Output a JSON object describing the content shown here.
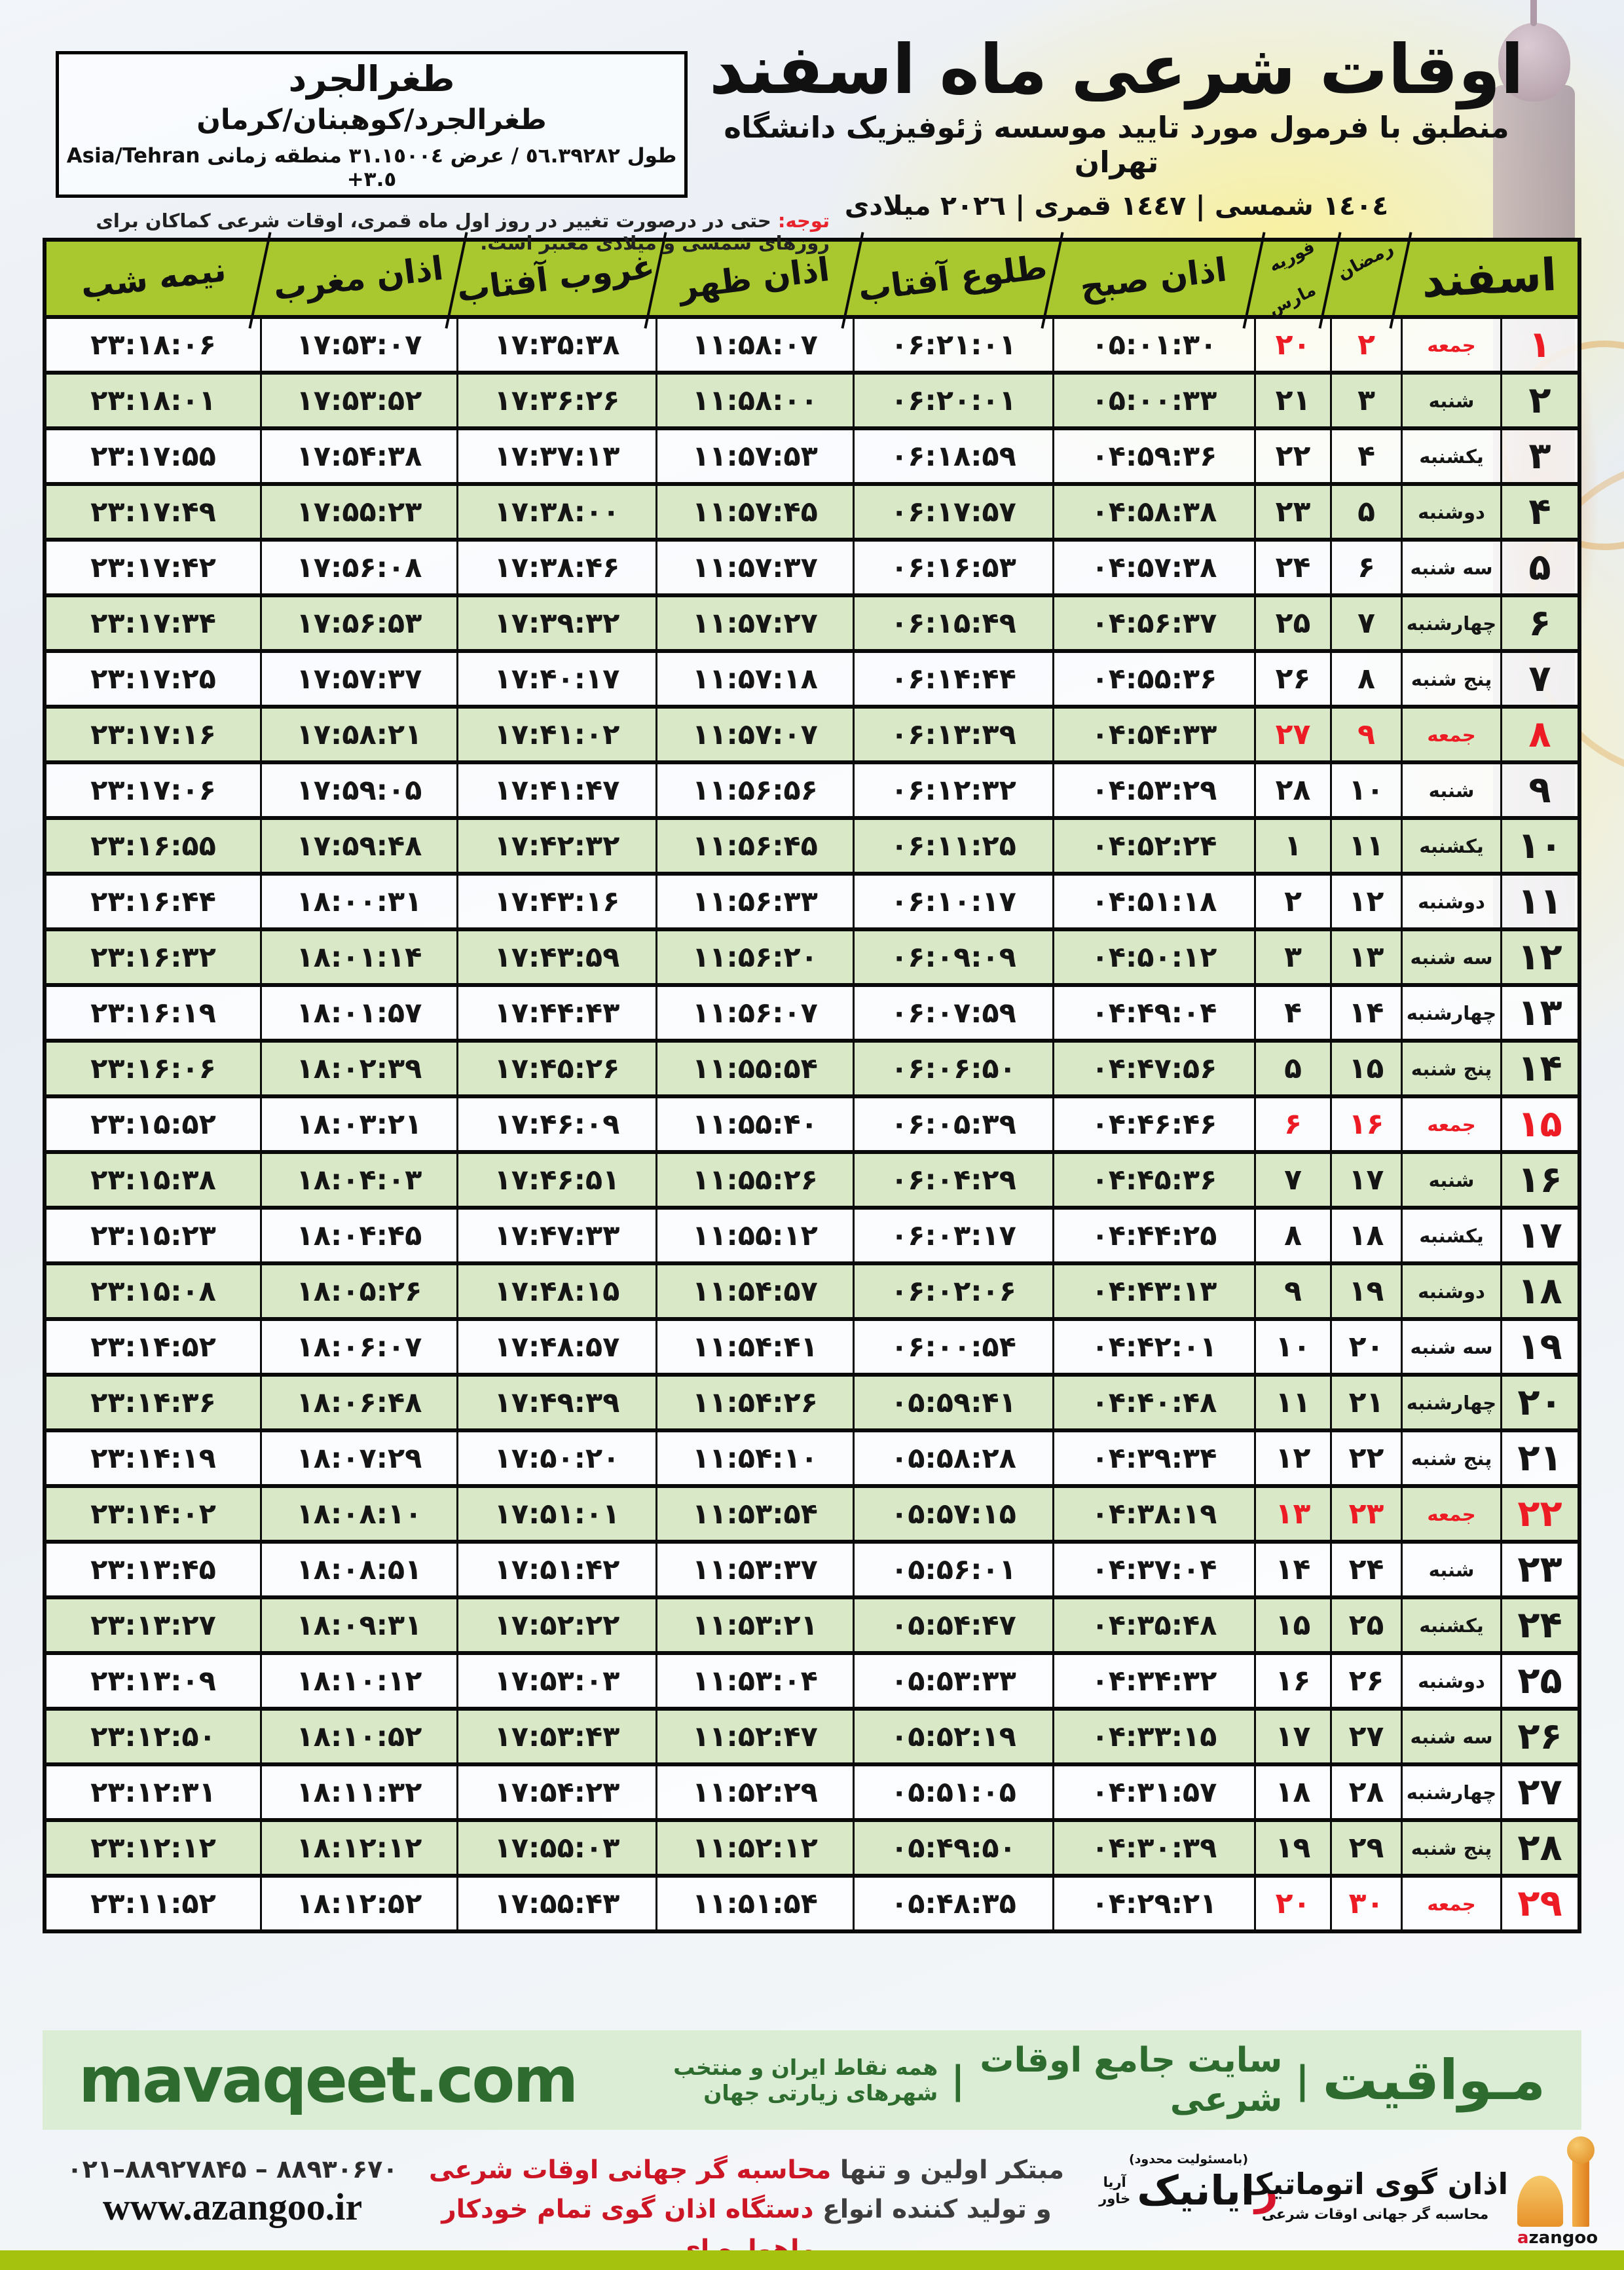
{
  "colors": {
    "header_green": "#a9c72e",
    "row_green": "#d9e8c6",
    "friday_red": "#ed1c24",
    "dark_green": "#2d6b2f",
    "footer_lime": "#a5c20e"
  },
  "header": {
    "title": "اوقات شرعی ماه اسفند",
    "subtitle": "منطبق با فرمول مورد تایید موسسه ژئوفیزیک دانشگاه تهران",
    "dates": "١٤٠٤ شمسی | ١٤٤٧ قمری | ٢٠٢٦ میلادی"
  },
  "location_box": {
    "name": "طغرالجرد",
    "region": "طغرالجرد/کوهبنان/کرمان",
    "coords": "طول ٥٦.٣٩٢٨٢ / عرض ٣١.١٥٠٠٤ منطقه زمانی",
    "timezone": "Asia/Tehran +٣.٥"
  },
  "notice": {
    "label": "توجه:",
    "text": " حتی در درصورت تغییر در روز اول ماه قمری، اوقات شرعی کماکان برای روزهای شمسی و میلادی معتبر است."
  },
  "table": {
    "headers": {
      "month": "اسفند",
      "ramadan": "رمضان",
      "greg_top": "فوریه",
      "greg_bottom": "مارس",
      "fajr": "اذان صبح",
      "sunrise": "طلوع آفتاب",
      "noon": "اذان ظهر",
      "sunset": "غروب آفتاب",
      "maghrib": "اذان مغرب",
      "midnight": "نیمه شب"
    },
    "rows": [
      {
        "d": "۱",
        "w": "جمعه",
        "r": "۲",
        "g": "۲۰",
        "sobh": "۰۵:۰۱:۳۰",
        "tolu": "۰۶:۲۱:۰۱",
        "zohr": "۱۱:۵۸:۰۷",
        "ghorub": "۱۷:۳۵:۳۸",
        "maghreb": "۱۷:۵۳:۰۷",
        "nime": "۲۳:۱۸:۰۶",
        "fri": true
      },
      {
        "d": "۲",
        "w": "شنبه",
        "r": "۳",
        "g": "۲۱",
        "sobh": "۰۵:۰۰:۳۳",
        "tolu": "۰۶:۲۰:۰۱",
        "zohr": "۱۱:۵۸:۰۰",
        "ghorub": "۱۷:۳۶:۲۶",
        "maghreb": "۱۷:۵۳:۵۲",
        "nime": "۲۳:۱۸:۰۱",
        "fri": false
      },
      {
        "d": "۳",
        "w": "یکشنبه",
        "r": "۴",
        "g": "۲۲",
        "sobh": "۰۴:۵۹:۳۶",
        "tolu": "۰۶:۱۸:۵۹",
        "zohr": "۱۱:۵۷:۵۳",
        "ghorub": "۱۷:۳۷:۱۳",
        "maghreb": "۱۷:۵۴:۳۸",
        "nime": "۲۳:۱۷:۵۵",
        "fri": false
      },
      {
        "d": "۴",
        "w": "دوشنبه",
        "r": "۵",
        "g": "۲۳",
        "sobh": "۰۴:۵۸:۳۸",
        "tolu": "۰۶:۱۷:۵۷",
        "zohr": "۱۱:۵۷:۴۵",
        "ghorub": "۱۷:۳۸:۰۰",
        "maghreb": "۱۷:۵۵:۲۳",
        "nime": "۲۳:۱۷:۴۹",
        "fri": false
      },
      {
        "d": "۵",
        "w": "سه شنبه",
        "r": "۶",
        "g": "۲۴",
        "sobh": "۰۴:۵۷:۳۸",
        "tolu": "۰۶:۱۶:۵۳",
        "zohr": "۱۱:۵۷:۳۷",
        "ghorub": "۱۷:۳۸:۴۶",
        "maghreb": "۱۷:۵۶:۰۸",
        "nime": "۲۳:۱۷:۴۲",
        "fri": false
      },
      {
        "d": "۶",
        "w": "چهارشنبه",
        "r": "۷",
        "g": "۲۵",
        "sobh": "۰۴:۵۶:۳۷",
        "tolu": "۰۶:۱۵:۴۹",
        "zohr": "۱۱:۵۷:۲۷",
        "ghorub": "۱۷:۳۹:۳۲",
        "maghreb": "۱۷:۵۶:۵۳",
        "nime": "۲۳:۱۷:۳۴",
        "fri": false
      },
      {
        "d": "۷",
        "w": "پنج شنبه",
        "r": "۸",
        "g": "۲۶",
        "sobh": "۰۴:۵۵:۳۶",
        "tolu": "۰۶:۱۴:۴۴",
        "zohr": "۱۱:۵۷:۱۸",
        "ghorub": "۱۷:۴۰:۱۷",
        "maghreb": "۱۷:۵۷:۳۷",
        "nime": "۲۳:۱۷:۲۵",
        "fri": false
      },
      {
        "d": "۸",
        "w": "جمعه",
        "r": "۹",
        "g": "۲۷",
        "sobh": "۰۴:۵۴:۳۳",
        "tolu": "۰۶:۱۳:۳۹",
        "zohr": "۱۱:۵۷:۰۷",
        "ghorub": "۱۷:۴۱:۰۲",
        "maghreb": "۱۷:۵۸:۲۱",
        "nime": "۲۳:۱۷:۱۶",
        "fri": true
      },
      {
        "d": "۹",
        "w": "شنبه",
        "r": "۱۰",
        "g": "۲۸",
        "sobh": "۰۴:۵۳:۲۹",
        "tolu": "۰۶:۱۲:۳۲",
        "zohr": "۱۱:۵۶:۵۶",
        "ghorub": "۱۷:۴۱:۴۷",
        "maghreb": "۱۷:۵۹:۰۵",
        "nime": "۲۳:۱۷:۰۶",
        "fri": false
      },
      {
        "d": "۱۰",
        "w": "یکشنبه",
        "r": "۱۱",
        "g": "۱",
        "sobh": "۰۴:۵۲:۲۴",
        "tolu": "۰۶:۱۱:۲۵",
        "zohr": "۱۱:۵۶:۴۵",
        "ghorub": "۱۷:۴۲:۳۲",
        "maghreb": "۱۷:۵۹:۴۸",
        "nime": "۲۳:۱۶:۵۵",
        "fri": false
      },
      {
        "d": "۱۱",
        "w": "دوشنبه",
        "r": "۱۲",
        "g": "۲",
        "sobh": "۰۴:۵۱:۱۸",
        "tolu": "۰۶:۱۰:۱۷",
        "zohr": "۱۱:۵۶:۳۳",
        "ghorub": "۱۷:۴۳:۱۶",
        "maghreb": "۱۸:۰۰:۳۱",
        "nime": "۲۳:۱۶:۴۴",
        "fri": false
      },
      {
        "d": "۱۲",
        "w": "سه شنبه",
        "r": "۱۳",
        "g": "۳",
        "sobh": "۰۴:۵۰:۱۲",
        "tolu": "۰۶:۰۹:۰۹",
        "zohr": "۱۱:۵۶:۲۰",
        "ghorub": "۱۷:۴۳:۵۹",
        "maghreb": "۱۸:۰۱:۱۴",
        "nime": "۲۳:۱۶:۳۲",
        "fri": false
      },
      {
        "d": "۱۳",
        "w": "چهارشنبه",
        "r": "۱۴",
        "g": "۴",
        "sobh": "۰۴:۴۹:۰۴",
        "tolu": "۰۶:۰۷:۵۹",
        "zohr": "۱۱:۵۶:۰۷",
        "ghorub": "۱۷:۴۴:۴۳",
        "maghreb": "۱۸:۰۱:۵۷",
        "nime": "۲۳:۱۶:۱۹",
        "fri": false
      },
      {
        "d": "۱۴",
        "w": "پنج شنبه",
        "r": "۱۵",
        "g": "۵",
        "sobh": "۰۴:۴۷:۵۶",
        "tolu": "۰۶:۰۶:۵۰",
        "zohr": "۱۱:۵۵:۵۴",
        "ghorub": "۱۷:۴۵:۲۶",
        "maghreb": "۱۸:۰۲:۳۹",
        "nime": "۲۳:۱۶:۰۶",
        "fri": false
      },
      {
        "d": "۱۵",
        "w": "جمعه",
        "r": "۱۶",
        "g": "۶",
        "sobh": "۰۴:۴۶:۴۶",
        "tolu": "۰۶:۰۵:۳۹",
        "zohr": "۱۱:۵۵:۴۰",
        "ghorub": "۱۷:۴۶:۰۹",
        "maghreb": "۱۸:۰۳:۲۱",
        "nime": "۲۳:۱۵:۵۲",
        "fri": true
      },
      {
        "d": "۱۶",
        "w": "شنبه",
        "r": "۱۷",
        "g": "۷",
        "sobh": "۰۴:۴۵:۳۶",
        "tolu": "۰۶:۰۴:۲۹",
        "zohr": "۱۱:۵۵:۲۶",
        "ghorub": "۱۷:۴۶:۵۱",
        "maghreb": "۱۸:۰۴:۰۳",
        "nime": "۲۳:۱۵:۳۸",
        "fri": false
      },
      {
        "d": "۱۷",
        "w": "یکشنبه",
        "r": "۱۸",
        "g": "۸",
        "sobh": "۰۴:۴۴:۲۵",
        "tolu": "۰۶:۰۳:۱۷",
        "zohr": "۱۱:۵۵:۱۲",
        "ghorub": "۱۷:۴۷:۳۳",
        "maghreb": "۱۸:۰۴:۴۵",
        "nime": "۲۳:۱۵:۲۳",
        "fri": false
      },
      {
        "d": "۱۸",
        "w": "دوشنبه",
        "r": "۱۹",
        "g": "۹",
        "sobh": "۰۴:۴۳:۱۳",
        "tolu": "۰۶:۰۲:۰۶",
        "zohr": "۱۱:۵۴:۵۷",
        "ghorub": "۱۷:۴۸:۱۵",
        "maghreb": "۱۸:۰۵:۲۶",
        "nime": "۲۳:۱۵:۰۸",
        "fri": false
      },
      {
        "d": "۱۹",
        "w": "سه شنبه",
        "r": "۲۰",
        "g": "۱۰",
        "sobh": "۰۴:۴۲:۰۱",
        "tolu": "۰۶:۰۰:۵۴",
        "zohr": "۱۱:۵۴:۴۱",
        "ghorub": "۱۷:۴۸:۵۷",
        "maghreb": "۱۸:۰۶:۰۷",
        "nime": "۲۳:۱۴:۵۲",
        "fri": false
      },
      {
        "d": "۲۰",
        "w": "چهارشنبه",
        "r": "۲۱",
        "g": "۱۱",
        "sobh": "۰۴:۴۰:۴۸",
        "tolu": "۰۵:۵۹:۴۱",
        "zohr": "۱۱:۵۴:۲۶",
        "ghorub": "۱۷:۴۹:۳۹",
        "maghreb": "۱۸:۰۶:۴۸",
        "nime": "۲۳:۱۴:۳۶",
        "fri": false
      },
      {
        "d": "۲۱",
        "w": "پنج شنبه",
        "r": "۲۲",
        "g": "۱۲",
        "sobh": "۰۴:۳۹:۳۴",
        "tolu": "۰۵:۵۸:۲۸",
        "zohr": "۱۱:۵۴:۱۰",
        "ghorub": "۱۷:۵۰:۲۰",
        "maghreb": "۱۸:۰۷:۲۹",
        "nime": "۲۳:۱۴:۱۹",
        "fri": false
      },
      {
        "d": "۲۲",
        "w": "جمعه",
        "r": "۲۳",
        "g": "۱۳",
        "sobh": "۰۴:۳۸:۱۹",
        "tolu": "۰۵:۵۷:۱۵",
        "zohr": "۱۱:۵۳:۵۴",
        "ghorub": "۱۷:۵۱:۰۱",
        "maghreb": "۱۸:۰۸:۱۰",
        "nime": "۲۳:۱۴:۰۲",
        "fri": true
      },
      {
        "d": "۲۳",
        "w": "شنبه",
        "r": "۲۴",
        "g": "۱۴",
        "sobh": "۰۴:۳۷:۰۴",
        "tolu": "۰۵:۵۶:۰۱",
        "zohr": "۱۱:۵۳:۳۷",
        "ghorub": "۱۷:۵۱:۴۲",
        "maghreb": "۱۸:۰۸:۵۱",
        "nime": "۲۳:۱۳:۴۵",
        "fri": false
      },
      {
        "d": "۲۴",
        "w": "یکشنبه",
        "r": "۲۵",
        "g": "۱۵",
        "sobh": "۰۴:۳۵:۴۸",
        "tolu": "۰۵:۵۴:۴۷",
        "zohr": "۱۱:۵۳:۲۱",
        "ghorub": "۱۷:۵۲:۲۲",
        "maghreb": "۱۸:۰۹:۳۱",
        "nime": "۲۳:۱۳:۲۷",
        "fri": false
      },
      {
        "d": "۲۵",
        "w": "دوشنبه",
        "r": "۲۶",
        "g": "۱۶",
        "sobh": "۰۴:۳۴:۳۲",
        "tolu": "۰۵:۵۳:۳۳",
        "zohr": "۱۱:۵۳:۰۴",
        "ghorub": "۱۷:۵۳:۰۳",
        "maghreb": "۱۸:۱۰:۱۲",
        "nime": "۲۳:۱۳:۰۹",
        "fri": false
      },
      {
        "d": "۲۶",
        "w": "سه شنبه",
        "r": "۲۷",
        "g": "۱۷",
        "sobh": "۰۴:۳۳:۱۵",
        "tolu": "۰۵:۵۲:۱۹",
        "zohr": "۱۱:۵۲:۴۷",
        "ghorub": "۱۷:۵۳:۴۳",
        "maghreb": "۱۸:۱۰:۵۲",
        "nime": "۲۳:۱۲:۵۰",
        "fri": false
      },
      {
        "d": "۲۷",
        "w": "چهارشنبه",
        "r": "۲۸",
        "g": "۱۸",
        "sobh": "۰۴:۳۱:۵۷",
        "tolu": "۰۵:۵۱:۰۵",
        "zohr": "۱۱:۵۲:۲۹",
        "ghorub": "۱۷:۵۴:۲۳",
        "maghreb": "۱۸:۱۱:۳۲",
        "nime": "۲۳:۱۲:۳۱",
        "fri": false
      },
      {
        "d": "۲۸",
        "w": "پنج شنبه",
        "r": "۲۹",
        "g": "۱۹",
        "sobh": "۰۴:۳۰:۳۹",
        "tolu": "۰۵:۴۹:۵۰",
        "zohr": "۱۱:۵۲:۱۲",
        "ghorub": "۱۷:۵۵:۰۳",
        "maghreb": "۱۸:۱۲:۱۲",
        "nime": "۲۳:۱۲:۱۲",
        "fri": false
      },
      {
        "d": "۲۹",
        "w": "جمعه",
        "r": "۳۰",
        "g": "۲۰",
        "sobh": "۰۴:۲۹:۲۱",
        "tolu": "۰۵:۴۸:۳۵",
        "zohr": "۱۱:۵۱:۵۴",
        "ghorub": "۱۷:۵۵:۴۳",
        "maghreb": "۱۸:۱۲:۵۲",
        "nime": "۲۳:۱۱:۵۲",
        "fri": true
      }
    ]
  },
  "mavaqeet": {
    "url": "mavaqeet.com",
    "brand": "مـواقیت",
    "separator": "|",
    "tagline": "سایت جامع اوقات شرعی",
    "subtagline": "همه نقاط ایران و منتخب شهرهای زیارتی جهان"
  },
  "footer": {
    "phone": "۰۲۱–۸۸۹۲۷۸۴۵ – ۸۸۹۳۰۶۷۰",
    "website": "www.azangoo.ir",
    "slogan_line1_dark": "مبتکر اولین و تنها ",
    "slogan_line1_red": "محاسبه گر جهانی اوقات شرعی",
    "slogan_line2_dark": "و تولید کننده انواع ",
    "slogan_line2_red": "دستگاه اذان گوی تمام خودکار ماهواره ای",
    "rayanik": {
      "llc": "(بامسئولیت محدود)",
      "name_red": "ر",
      "name_rest": "ایانیک",
      "side_top": "آریا",
      "side_bottom": "خاور"
    },
    "azangoo": {
      "title": "اذان گوی اتوماتیک",
      "subtitle": "محاسبه گر جهانی اوقات شرعی",
      "latin_a": "a",
      "latin_rest": "zangoo"
    }
  }
}
